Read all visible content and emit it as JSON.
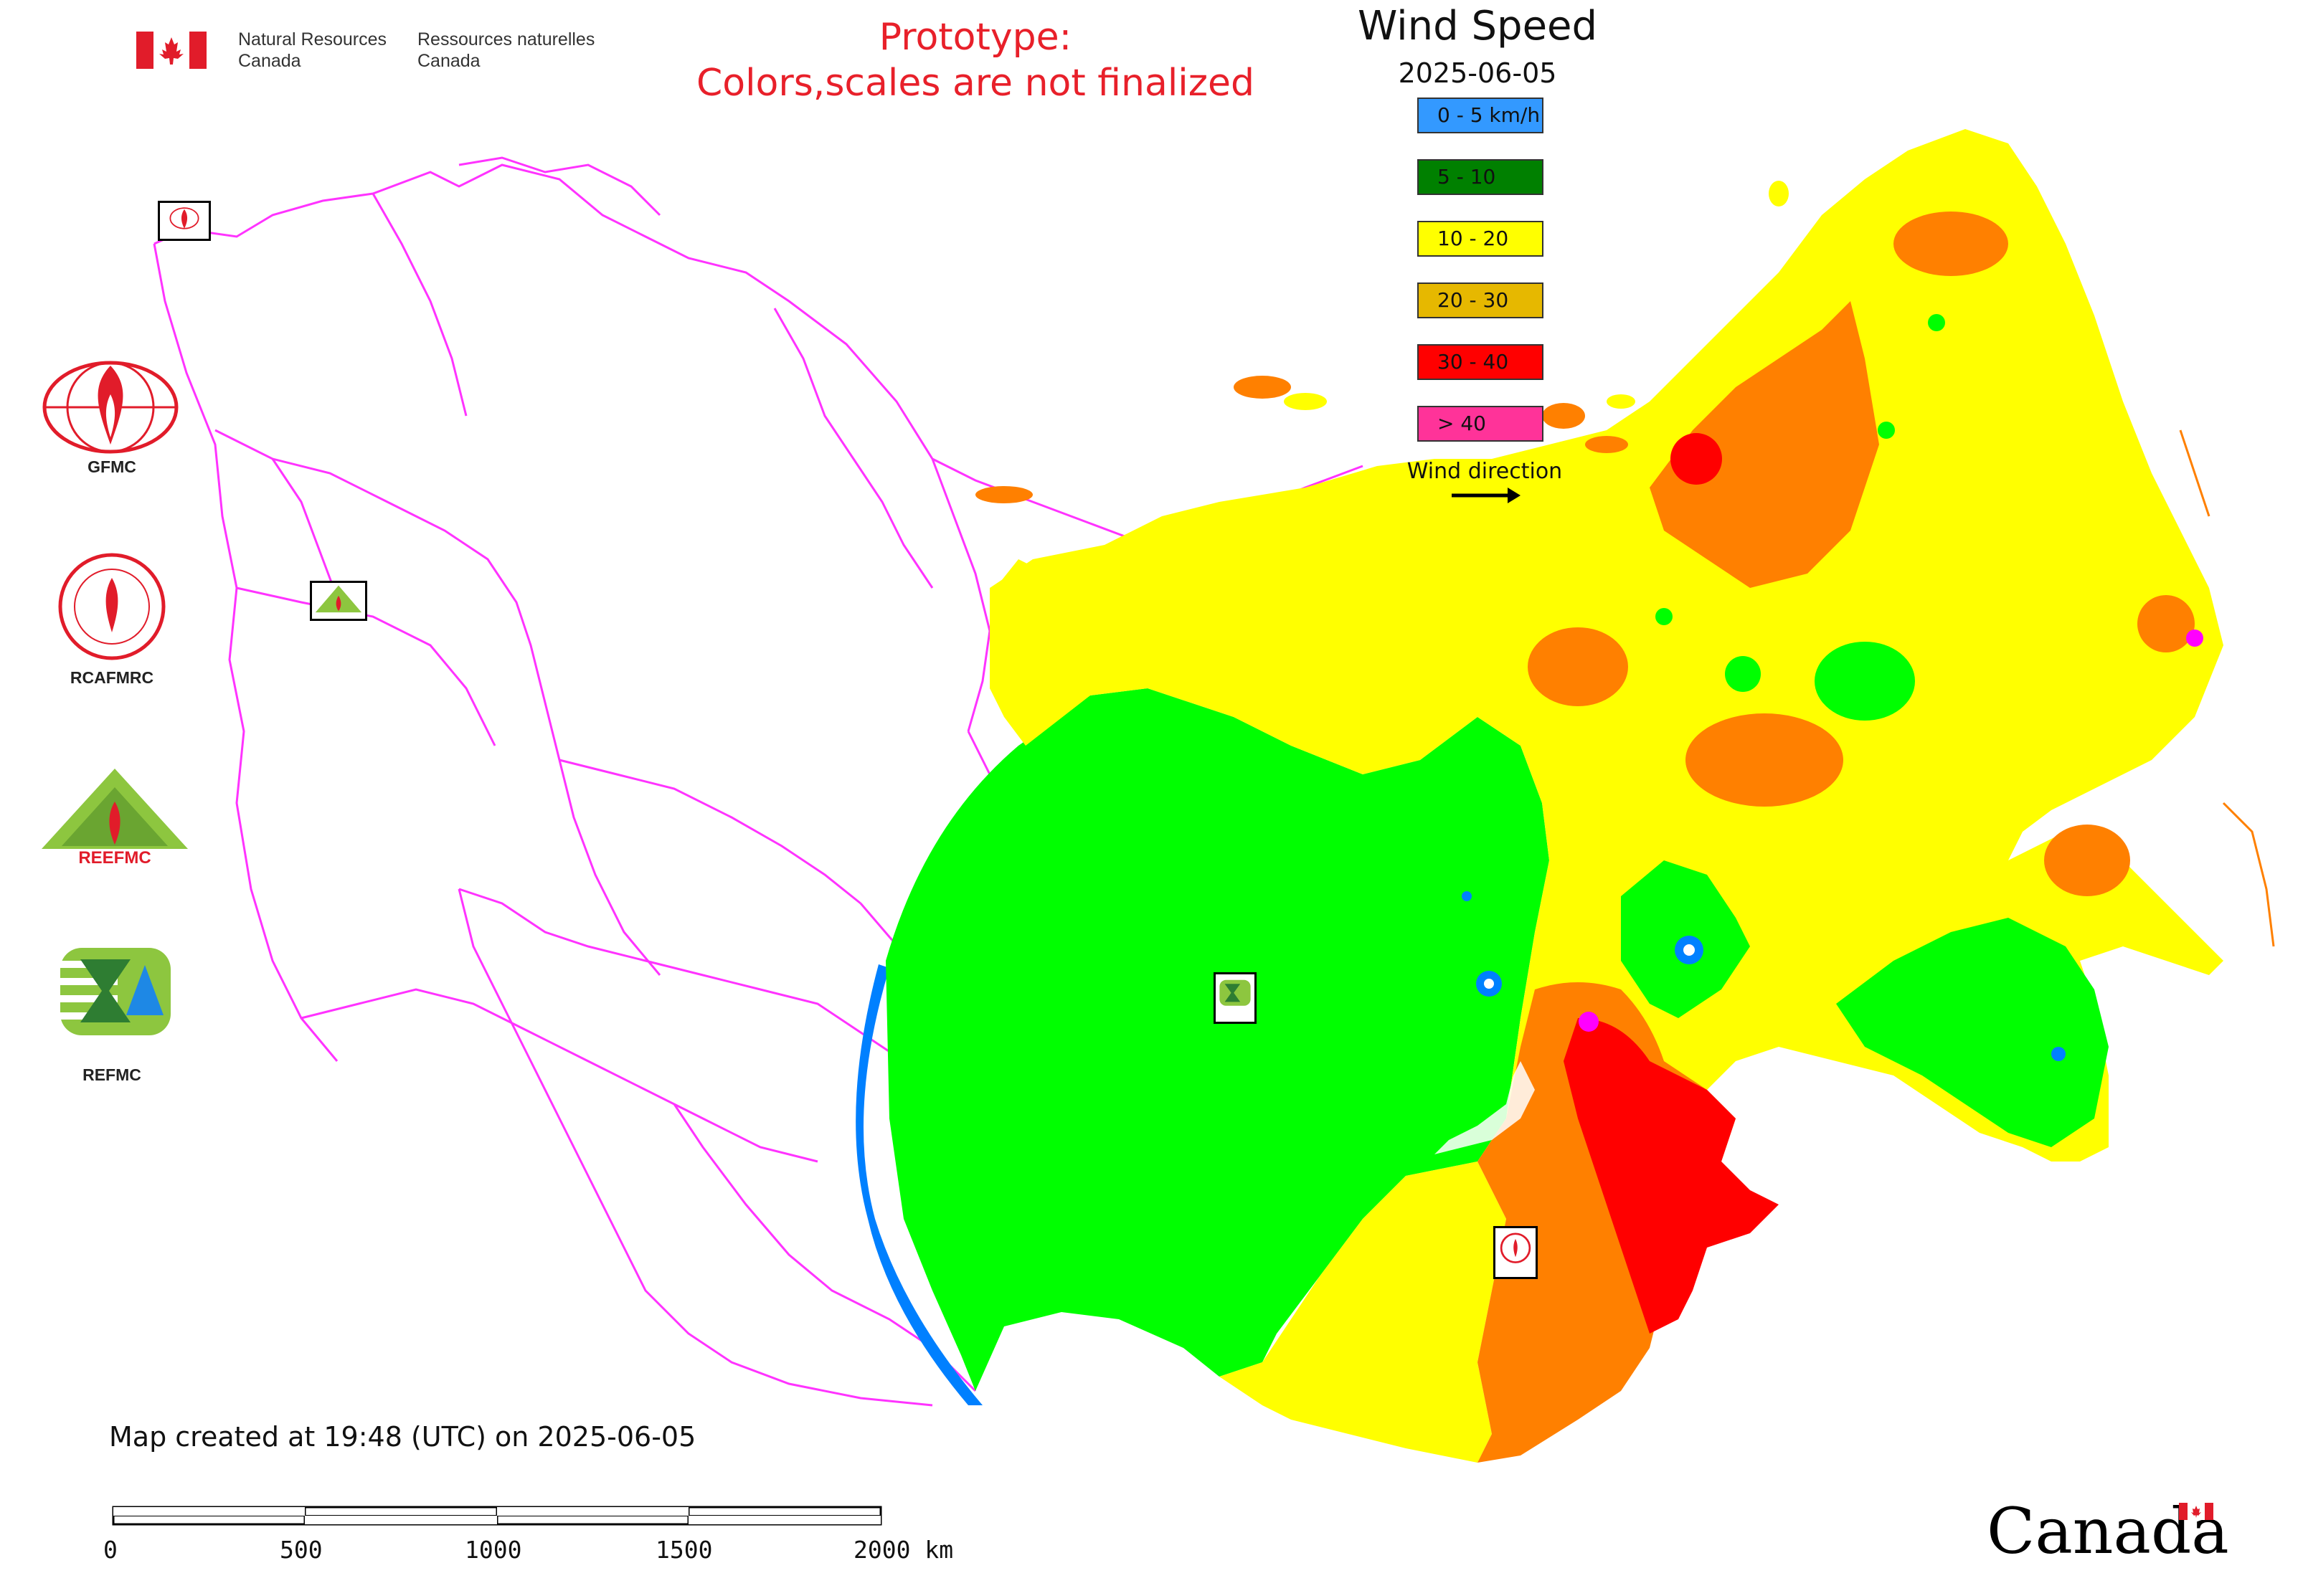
{
  "header": {
    "gov_en_line1": "Natural Resources",
    "gov_en_line2": "Canada",
    "gov_fr_line1": "Ressources naturelles",
    "gov_fr_line2": "Canada",
    "prototype_line1": "Prototype:",
    "prototype_line2": "Colors,scales are not finalized"
  },
  "legend": {
    "title": "Wind Speed",
    "date": "2025-06-05",
    "items": [
      {
        "label": "0 - 5 km/h",
        "color": "#3399ff"
      },
      {
        "label": "5 - 10",
        "color": "#008000"
      },
      {
        "label": "10 - 20",
        "color": "#ffff00"
      },
      {
        "label": "20 - 30",
        "color": "#e6b800"
      },
      {
        "label": "30 - 40",
        "color": "#ff0000"
      },
      {
        "label": "> 40",
        "color": "#ff3399"
      }
    ],
    "wind_direction_label": "Wind direction"
  },
  "logos": [
    {
      "name": "gfmc-logo",
      "label": "GFMC"
    },
    {
      "name": "rcafmrc-logo",
      "label": "RCAFMRC"
    },
    {
      "name": "reefmc-logo",
      "label": ""
    },
    {
      "name": "refmc-logo",
      "label": "REFMC"
    }
  ],
  "map_colors": {
    "green": "#00ff00",
    "yellow": "#ffff00",
    "orange": "#ff8000",
    "red": "#ff0000",
    "magenta": "#ff00ff",
    "blue": "#0080ff",
    "borders": "#ff33ff"
  },
  "caption": "Map created at 19:48 (UTC) on 2025-06-05",
  "scale": {
    "ticks": [
      "0",
      "500",
      "1000",
      "1500",
      "2000 km"
    ]
  },
  "wordmark": "Canada"
}
